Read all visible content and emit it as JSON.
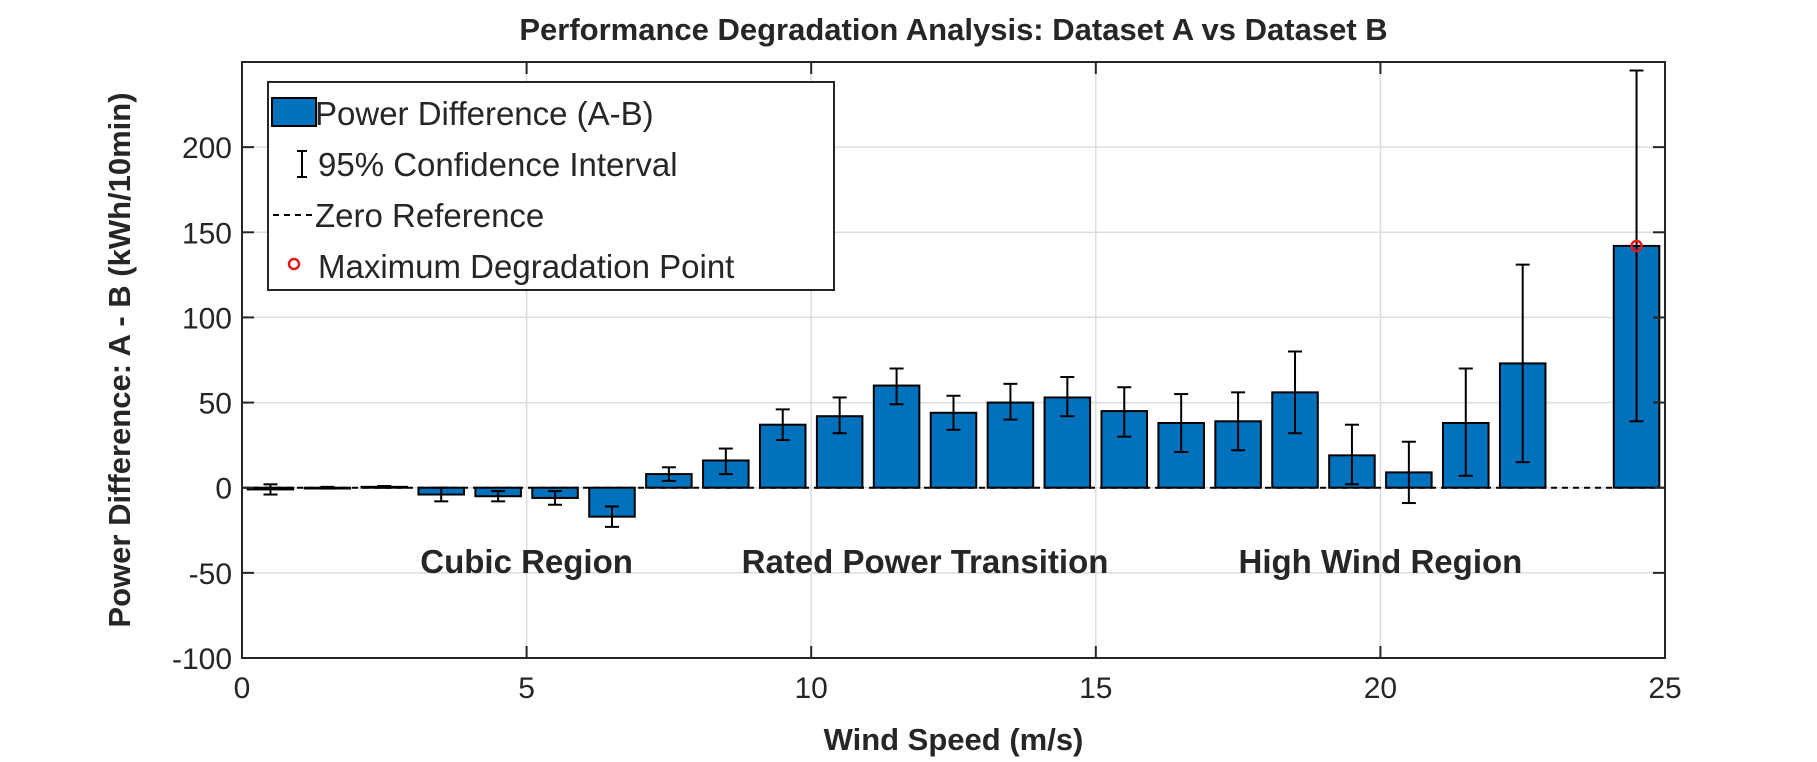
{
  "chart_data": {
    "type": "bar",
    "title": "Performance Degradation Analysis: Dataset A vs Dataset B",
    "xlabel": "Wind Speed (m/s)",
    "ylabel": "Power Difference: A - B (kWh/10min)",
    "xlim": [
      0,
      25
    ],
    "ylim": [
      -100,
      250
    ],
    "xticks": [
      0,
      5,
      10,
      15,
      20,
      25
    ],
    "yticks": [
      -100,
      -50,
      0,
      50,
      100,
      150,
      200
    ],
    "grid": true,
    "legend_position": "top-left",
    "legend": {
      "bars": "Power Difference (A-B)",
      "errorbars": "95% Confidence Interval",
      "zero": "Zero Reference",
      "max_point": "Maximum Degradation Point"
    },
    "series": [
      {
        "name": "Power Difference (A-B)",
        "x": [
          0.5,
          1.5,
          2.5,
          3.5,
          4.5,
          5.5,
          6.5,
          7.5,
          8.5,
          9.5,
          10.5,
          11.5,
          12.5,
          13.5,
          14.5,
          15.5,
          16.5,
          17.5,
          18.5,
          19.5,
          20.5,
          21.5,
          22.5,
          24.5
        ],
        "values": [
          -1,
          0,
          0.5,
          -4,
          -5,
          -6,
          -17,
          8,
          16,
          37,
          42,
          60,
          44,
          50,
          53,
          45,
          38,
          39,
          56,
          19,
          9,
          38,
          73,
          142
        ],
        "ci_lower": [
          -4,
          -0.5,
          0,
          -8,
          -8,
          -10,
          -23,
          4,
          8,
          28,
          32,
          49,
          34,
          40,
          42,
          30,
          21,
          22,
          32,
          2,
          -9,
          7,
          15,
          39
        ],
        "ci_upper": [
          2,
          0.5,
          1,
          0,
          -2,
          -2,
          -11,
          12,
          23,
          46,
          53,
          70,
          54,
          61,
          65,
          59,
          55,
          56,
          80,
          37,
          27,
          70,
          131,
          245
        ]
      }
    ],
    "max_point": {
      "x": 24.5,
      "y": 142
    },
    "annotations": [
      {
        "text": "Cubic Region",
        "x": 5,
        "y": -43
      },
      {
        "text": "Rated Power Transition",
        "x": 12,
        "y": -43
      },
      {
        "text": "High Wind Region",
        "x": 20,
        "y": -43
      }
    ],
    "colors": {
      "bar": "#0072BD",
      "max_point": "#E41A1C",
      "grid": "#DCDCDC",
      "axis": "#262626"
    }
  }
}
